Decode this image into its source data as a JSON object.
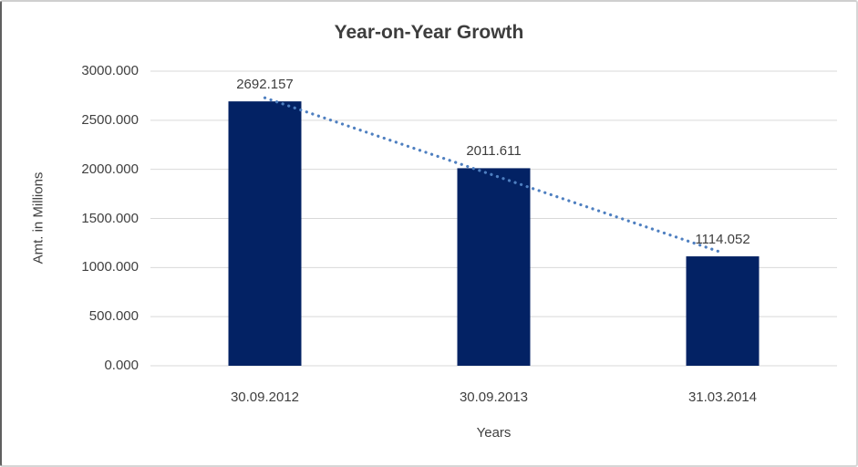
{
  "chart_data": {
    "type": "bar",
    "title": "Year-on-Year Growth",
    "xlabel": "Years",
    "ylabel": "Amt. in Millions",
    "categories": [
      "30.09.2012",
      "30.09.2013",
      "31.03.2014"
    ],
    "values": [
      2692.157,
      2011.611,
      1114.052
    ],
    "data_labels": [
      "2692.157",
      "2011.611",
      "1114.052"
    ],
    "ylim": [
      0,
      3000
    ],
    "ytick_step": 500,
    "ytick_labels": [
      "0.000",
      "500.000",
      "1000.000",
      "1500.000",
      "2000.000",
      "2500.000",
      "3000.000"
    ],
    "grid": "horizontal-only",
    "legend": "none",
    "trendline": {
      "kind": "linear",
      "style": "dotted"
    },
    "colors": {
      "bar": "#032264",
      "trendline": "#4e7fc0",
      "gridline": "#d9d9d9",
      "text": "#404040",
      "background": "#ffffff"
    }
  }
}
